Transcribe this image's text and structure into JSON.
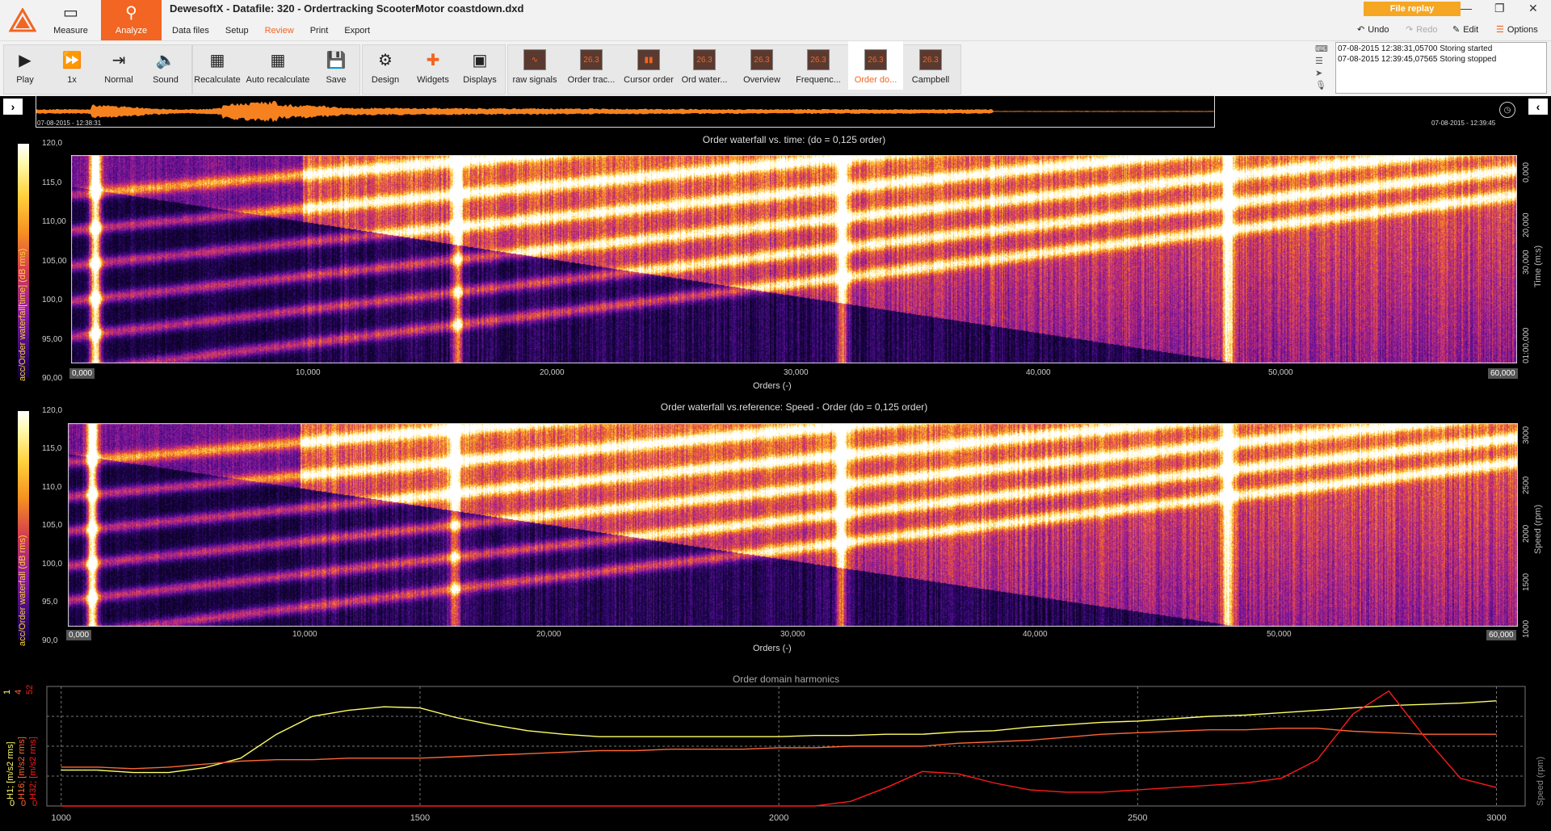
{
  "window": {
    "title": "DewesoftX - Datafile: 320 - Ordertracking ScooterMotor coastdown.dxd"
  },
  "modes": {
    "measure": "Measure",
    "analyze": "Analyze"
  },
  "menu": [
    "Data files",
    "Setup",
    "Review",
    "Print",
    "Export"
  ],
  "file_replay": "File replay",
  "top_actions": {
    "undo": "Undo",
    "redo": "Redo",
    "edit": "Edit",
    "options": "Options"
  },
  "toolbar": {
    "play": "Play",
    "speed": "1x",
    "normal": "Normal",
    "sound": "Sound",
    "recalculate": "Recalculate",
    "auto_recalculate": "Auto recalculate",
    "save": "Save",
    "design": "Design",
    "widgets": "Widgets",
    "displays": "Displays",
    "display_tabs": [
      "raw signals",
      "Order trac...",
      "Cursor order",
      "Ord water...",
      "Overview",
      "Frequenc...",
      "Order do...",
      "Campbell"
    ],
    "thumb_text": "26.3"
  },
  "events": [
    "07-08-2015 12:38:31,05700 Storing started",
    "07-08-2015 12:39:45,07565 Storing stopped"
  ],
  "overview": {
    "start": "07-08-2015 - 12:38:31",
    "end": "07-08-2015 - 12:39:45"
  },
  "chart1": {
    "title": "Order waterfall vs. time: (do = 0,125 order)",
    "xlabel": "Orders (-)",
    "clabel": "acc/Order waterfall[time] (dB rms)",
    "ylabel_right": "Time (m:s)",
    "cticks": [
      "120,0",
      "115,0",
      "110,00",
      "105,00",
      "100,0",
      "95,00",
      "90,00"
    ],
    "xticks": [
      "0,000",
      "10,000",
      "20,000",
      "30,000",
      "40,000",
      "50,000",
      "60,000"
    ],
    "yticks_right": [
      "0,000",
      "20,000",
      "30,000",
      "01:00,000"
    ]
  },
  "chart2": {
    "title": "Order waterfall vs.reference: Speed - Order (do = 0,125 order)",
    "xlabel": "Orders (-)",
    "clabel": "acc/Order waterfall (dB rms)",
    "ylabel_right": "Speed (rpm)",
    "cticks": [
      "120,0",
      "115,0",
      "110,0",
      "105,0",
      "100,0",
      "95,0",
      "90,0"
    ],
    "xticks": [
      "0,000",
      "10,000",
      "20,000",
      "30,000",
      "40,000",
      "50,000",
      "60,000"
    ],
    "yticks_right": [
      "3000",
      "2500",
      "2000",
      "1500",
      "1000"
    ]
  },
  "chart_data": {
    "type": "line",
    "title": "Order domain harmonics",
    "xlabel": "",
    "ylabel_right": "Speed (rpm)",
    "x": [
      1000,
      1050,
      1100,
      1150,
      1200,
      1250,
      1300,
      1350,
      1400,
      1450,
      1500,
      1550,
      1600,
      1650,
      1700,
      1750,
      1800,
      1850,
      1900,
      1950,
      2000,
      2050,
      2100,
      2150,
      2200,
      2250,
      2300,
      2350,
      2400,
      2450,
      2500,
      2550,
      2600,
      2650,
      2700,
      2750,
      2800,
      2850,
      2900,
      2950,
      3000
    ],
    "xlim": [
      980,
      3040
    ],
    "xticks": [
      "1000",
      "1500",
      "2000",
      "2500",
      "3000"
    ],
    "axes": [
      {
        "label": "H1; [m/s2 rms]",
        "color": "#ffff66",
        "ticks": [
          "1",
          "0"
        ],
        "ylim": [
          0,
          1
        ]
      },
      {
        "label": "H16; [m/s2 rms]",
        "color": "#ff6633",
        "ticks": [
          "4",
          "0"
        ],
        "ylim": [
          0,
          4
        ]
      },
      {
        "label": "H32; [m/s2 rms]",
        "color": "#ff1a1a",
        "ticks": [
          "52",
          "0"
        ],
        "ylim": [
          0,
          52
        ]
      }
    ],
    "series": [
      {
        "name": "H1",
        "color": "#ffff66",
        "axis": 0,
        "values": [
          0.3,
          0.3,
          0.28,
          0.28,
          0.32,
          0.4,
          0.6,
          0.75,
          0.8,
          0.83,
          0.82,
          0.74,
          0.68,
          0.63,
          0.6,
          0.58,
          0.58,
          0.58,
          0.58,
          0.58,
          0.58,
          0.59,
          0.59,
          0.6,
          0.6,
          0.62,
          0.63,
          0.66,
          0.68,
          0.7,
          0.71,
          0.73,
          0.75,
          0.76,
          0.78,
          0.8,
          0.82,
          0.84,
          0.85,
          0.86,
          0.88
        ]
      },
      {
        "name": "H16",
        "color": "#ff6633",
        "axis": 1,
        "values": [
          1.3,
          1.3,
          1.25,
          1.3,
          1.4,
          1.5,
          1.55,
          1.55,
          1.6,
          1.6,
          1.6,
          1.65,
          1.7,
          1.75,
          1.8,
          1.85,
          1.85,
          1.9,
          1.9,
          1.9,
          1.95,
          1.95,
          2.0,
          2.0,
          2.0,
          2.1,
          2.15,
          2.2,
          2.3,
          2.4,
          2.45,
          2.5,
          2.55,
          2.55,
          2.6,
          2.6,
          2.5,
          2.45,
          2.4,
          2.4,
          2.4
        ]
      },
      {
        "name": "H32",
        "color": "#ff1a1a",
        "axis": 2,
        "values": [
          0,
          0,
          0,
          0,
          0,
          0,
          0,
          0,
          0,
          0,
          0,
          0,
          0,
          0,
          0,
          0,
          0,
          0,
          0,
          0,
          0,
          0,
          2,
          8,
          15,
          14,
          10,
          7,
          6,
          6,
          7,
          8,
          9,
          10,
          12,
          20,
          40,
          50,
          30,
          12,
          8
        ]
      }
    ],
    "grid": true
  }
}
